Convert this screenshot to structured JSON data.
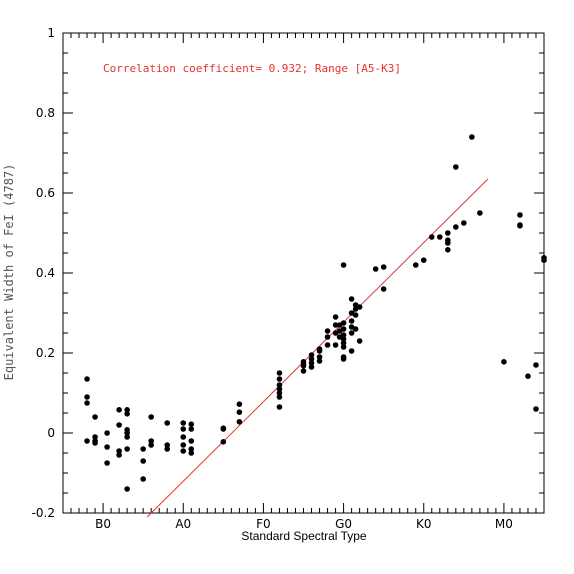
{
  "chart_data": {
    "type": "scatter",
    "title": "",
    "xlabel": "Standard Spectral Type",
    "ylabel": "Equivalent Width of FeI (4787)",
    "annotation": "Correlation coefficient= 0.932; Range [A5-K3]",
    "x_tick_labels": [
      "B0",
      "A0",
      "F0",
      "G0",
      "K0",
      "M0"
    ],
    "x_tick_positions": [
      10,
      20,
      30,
      40,
      50,
      60
    ],
    "xlim": [
      5,
      65
    ],
    "ylim": [
      -0.2,
      1
    ],
    "y_ticks": [
      -0.2,
      0,
      0.2,
      0.4,
      0.6,
      0.8,
      1
    ],
    "y_tick_labels": [
      "-0.2",
      "0",
      "0.2",
      "0.4",
      "0.6",
      "0.8",
      "1"
    ],
    "fit_line": {
      "x": [
        15.5,
        58
      ],
      "y": [
        -0.21,
        0.635
      ],
      "color": "#e8312f"
    },
    "points": [
      [
        8,
        0.135
      ],
      [
        8,
        0.09
      ],
      [
        8,
        0.075
      ],
      [
        8,
        -0.02
      ],
      [
        9,
        0.04
      ],
      [
        9,
        -0.01
      ],
      [
        9,
        -0.02
      ],
      [
        9,
        -0.025
      ],
      [
        10.5,
        0.0
      ],
      [
        10.5,
        -0.035
      ],
      [
        10.5,
        -0.075
      ],
      [
        12,
        0.058
      ],
      [
        12,
        0.02
      ],
      [
        12,
        -0.045
      ],
      [
        12,
        -0.055
      ],
      [
        13,
        0.058
      ],
      [
        13,
        0.048
      ],
      [
        13,
        0.008
      ],
      [
        13,
        0.0
      ],
      [
        13,
        -0.01
      ],
      [
        13,
        -0.04
      ],
      [
        13,
        -0.14
      ],
      [
        15,
        -0.04
      ],
      [
        15,
        -0.07
      ],
      [
        15,
        -0.115
      ],
      [
        16,
        0.04
      ],
      [
        16,
        -0.02
      ],
      [
        16,
        -0.03
      ],
      [
        18,
        0.025
      ],
      [
        18,
        -0.03
      ],
      [
        18,
        -0.04
      ],
      [
        20,
        0.025
      ],
      [
        20,
        0.01
      ],
      [
        20,
        -0.01
      ],
      [
        20,
        -0.03
      ],
      [
        20,
        -0.045
      ],
      [
        21,
        0.022
      ],
      [
        21,
        0.01
      ],
      [
        21,
        -0.02
      ],
      [
        21,
        -0.04
      ],
      [
        21,
        -0.05
      ],
      [
        25,
        0.012
      ],
      [
        25,
        0.01
      ],
      [
        25,
        -0.022
      ],
      [
        27,
        0.072
      ],
      [
        27,
        0.052
      ],
      [
        27,
        0.028
      ],
      [
        32,
        0.15
      ],
      [
        32,
        0.135
      ],
      [
        32,
        0.12
      ],
      [
        32,
        0.11
      ],
      [
        32,
        0.1
      ],
      [
        32,
        0.09
      ],
      [
        32,
        0.065
      ],
      [
        35,
        0.178
      ],
      [
        35,
        0.172
      ],
      [
        35,
        0.168
      ],
      [
        35,
        0.155
      ],
      [
        36,
        0.195
      ],
      [
        36,
        0.185
      ],
      [
        36,
        0.175
      ],
      [
        36,
        0.165
      ],
      [
        37,
        0.21
      ],
      [
        37,
        0.205
      ],
      [
        37,
        0.19
      ],
      [
        37,
        0.18
      ],
      [
        38,
        0.255
      ],
      [
        38,
        0.24
      ],
      [
        38,
        0.22
      ],
      [
        39,
        0.29
      ],
      [
        39,
        0.27
      ],
      [
        39,
        0.25
      ],
      [
        39,
        0.22
      ],
      [
        39.5,
        0.27
      ],
      [
        39.5,
        0.255
      ],
      [
        39.5,
        0.24
      ],
      [
        40,
        0.42
      ],
      [
        40,
        0.275
      ],
      [
        40,
        0.26
      ],
      [
        40,
        0.245
      ],
      [
        40,
        0.235
      ],
      [
        40,
        0.225
      ],
      [
        40,
        0.215
      ],
      [
        40,
        0.19
      ],
      [
        40,
        0.185
      ],
      [
        41,
        0.335
      ],
      [
        41,
        0.3
      ],
      [
        41,
        0.28
      ],
      [
        41,
        0.265
      ],
      [
        41,
        0.25
      ],
      [
        41,
        0.205
      ],
      [
        41.5,
        0.32
      ],
      [
        41.5,
        0.31
      ],
      [
        41.5,
        0.295
      ],
      [
        41.5,
        0.26
      ],
      [
        42,
        0.315
      ],
      [
        42,
        0.23
      ],
      [
        44,
        0.41
      ],
      [
        45,
        0.415
      ],
      [
        45,
        0.36
      ],
      [
        49,
        0.42
      ],
      [
        50,
        0.432
      ],
      [
        51,
        0.49
      ],
      [
        52,
        0.49
      ],
      [
        53,
        0.5
      ],
      [
        53,
        0.482
      ],
      [
        53,
        0.475
      ],
      [
        53,
        0.458
      ],
      [
        54,
        0.665
      ],
      [
        54,
        0.515
      ],
      [
        55,
        0.525
      ],
      [
        56,
        0.74
      ],
      [
        57,
        0.55
      ],
      [
        60,
        0.178
      ],
      [
        62,
        0.545
      ],
      [
        62,
        0.52
      ],
      [
        62,
        0.518
      ],
      [
        63,
        0.142
      ],
      [
        64,
        0.17
      ],
      [
        64,
        0.06
      ],
      [
        65,
        0.438
      ],
      [
        65,
        0.432
      ]
    ]
  }
}
